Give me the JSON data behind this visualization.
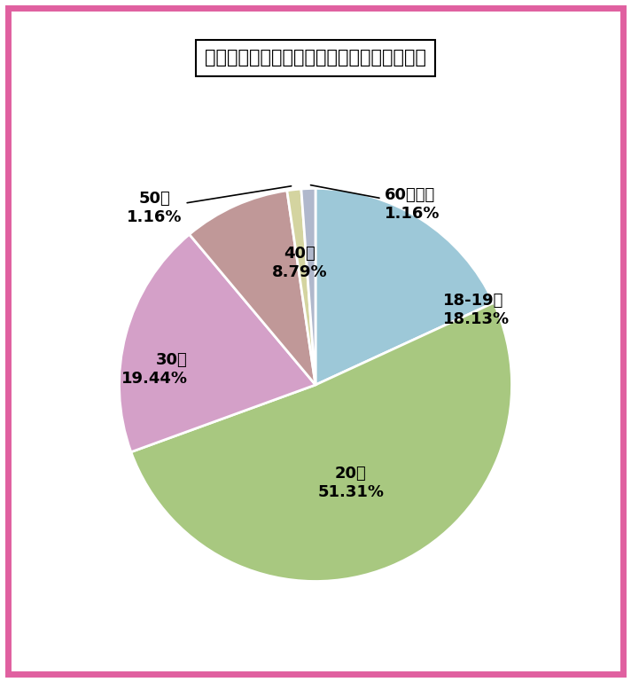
{
  "title": "島根県のワクワクメール：女性会員の年齢層",
  "labels": [
    "18-19歳",
    "20代",
    "30代",
    "40代",
    "50代",
    "60代以上"
  ],
  "values": [
    18.13,
    51.31,
    19.44,
    8.79,
    1.16,
    1.16
  ],
  "colors": [
    "#9dc8d8",
    "#a8c880",
    "#d4a0c8",
    "#c09898",
    "#d4d4a0",
    "#b0b8cc"
  ],
  "background_color": "#ffffff",
  "border_color": "#e060a0",
  "title_fontsize": 15,
  "label_fontsize": 13,
  "startangle": 90
}
